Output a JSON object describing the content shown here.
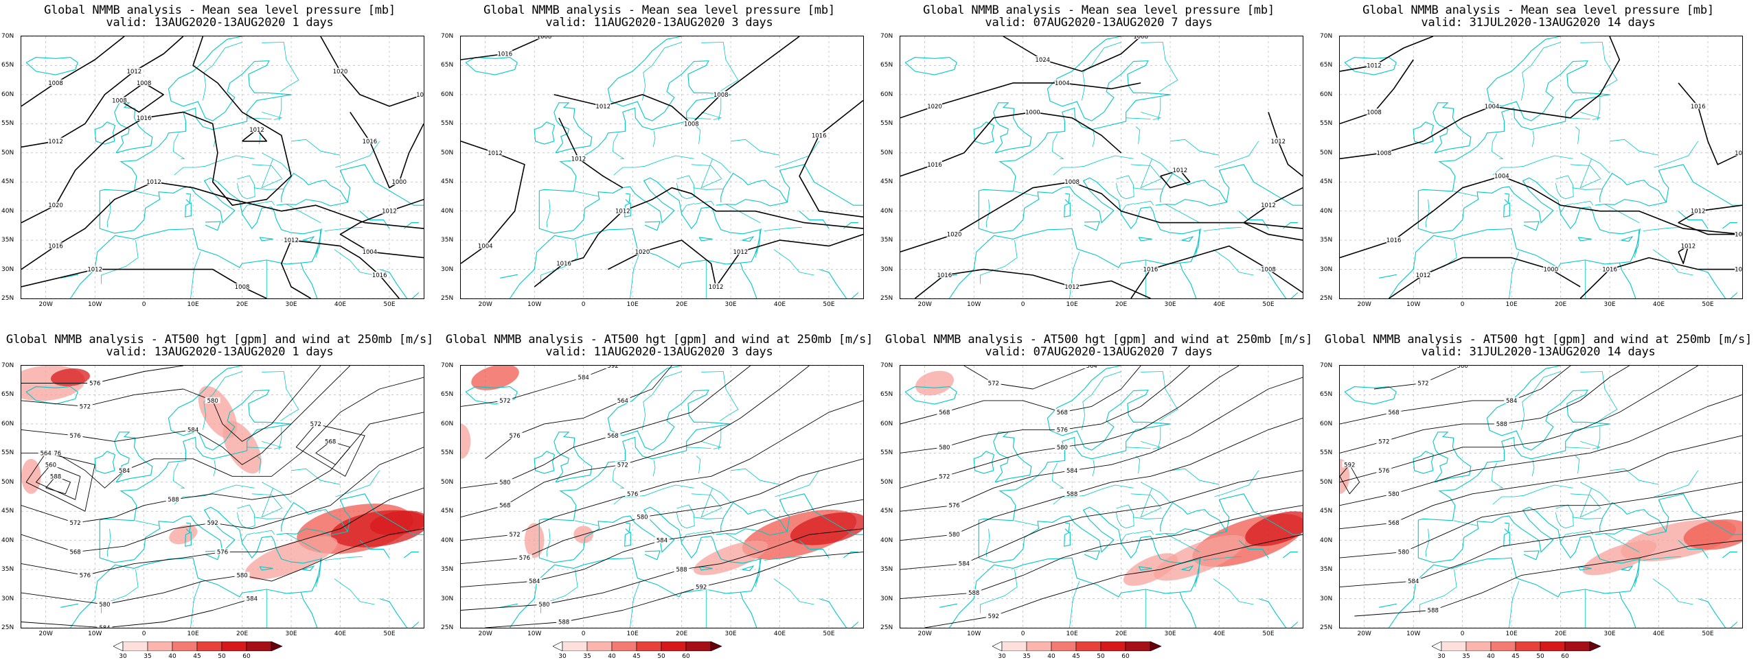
{
  "panels": [
    {
      "title1": "Global NMMB analysis - Mean sea level pressure [mb]",
      "title2": "valid: 13AUG2020-13AUG2020  1 days",
      "contour_labels": [
        "1012",
        "1016",
        "1020",
        "1016",
        "1012",
        "1016",
        "1012",
        "1016",
        "1020",
        "1012",
        "1008",
        "1012",
        "1008",
        "1016",
        "1012",
        "1008",
        "1012",
        "1004",
        "1000",
        "1012",
        "1012",
        "1008",
        "1012"
      ]
    },
    {
      "title1": "Global NMMB analysis - Mean sea level pressure [mb]",
      "title2": "valid: 11AUG2020-13AUG2020  3 days",
      "contour_labels": [
        "1016",
        "1012",
        "1016",
        "1020",
        "1012",
        "1016",
        "1016",
        "1012",
        "1012",
        "1008",
        "1004",
        "1012",
        "1012",
        "1008",
        "1008"
      ]
    },
    {
      "title1": "Global NMMB analysis - Mean sea level pressure [mb]",
      "title2": "valid: 07AUG2020-13AUG2020  7 days",
      "contour_labels": [
        "1024",
        "1020",
        "1016",
        "1020",
        "1016",
        "1016",
        "1012",
        "1012",
        "1012",
        "1008",
        "1004",
        "1000",
        "1008",
        "1012",
        "1008"
      ]
    },
    {
      "title1": "Global NMMB analysis - Mean sea level pressure [mb]",
      "title2": "valid: 31JUL2020-13AUG2020  14 days",
      "contour_labels": [
        "1016",
        "1004",
        "1008",
        "1016",
        "1012",
        "1016",
        "1012",
        "1016",
        "1012",
        "1012",
        "1008",
        "1004",
        "1004",
        "1000",
        "1012",
        "1008",
        "1012"
      ]
    },
    {
      "title1": "Global NMMB analysis - AT500 hgt [gpm] and wind at 250mb [m/s]",
      "title2": "valid: 13AUG2020-13AUG2020  1 days",
      "contour_labels": [
        "568",
        "572",
        "576",
        "576",
        "572",
        "568",
        "576",
        "580",
        "584",
        "588",
        "560",
        "564",
        "568",
        "572",
        "576",
        "580",
        "584",
        "584",
        "588",
        "592",
        "576",
        "580",
        "584"
      ]
    },
    {
      "title1": "Global NMMB analysis - AT500 hgt [gpm] and wind at 250mb [m/s]",
      "title2": "valid: 11AUG2020-13AUG2020  3 days",
      "contour_labels": [
        "572",
        "576",
        "580",
        "568",
        "572",
        "576",
        "584",
        "580",
        "588",
        "592",
        "564",
        "568",
        "572",
        "576",
        "580",
        "584",
        "588",
        "592",
        "584"
      ]
    },
    {
      "title1": "Global NMMB analysis - AT500 hgt [gpm] and wind at 250mb [m/s]",
      "title2": "valid: 07AUG2020-13AUG2020  7 days",
      "contour_labels": [
        "572",
        "568",
        "580",
        "572",
        "576",
        "580",
        "584",
        "588",
        "592",
        "564",
        "568",
        "576",
        "580",
        "584",
        "588"
      ]
    },
    {
      "title1": "Global NMMB analysis - AT500 hgt [gpm] and wind at 250mb [m/s]",
      "title2": "valid: 31JUL2020-13AUG2020  14 days",
      "contour_labels": [
        "572",
        "568",
        "572",
        "576",
        "580",
        "568",
        "580",
        "584",
        "588",
        "592",
        "580",
        "584",
        "588"
      ]
    }
  ],
  "axes": {
    "lat_labels": [
      "70N",
      "65N",
      "60N",
      "55N",
      "50N",
      "45N",
      "40N",
      "35N",
      "30N",
      "25N"
    ],
    "lon_labels": [
      "20W",
      "10W",
      "0",
      "10E",
      "20E",
      "30E",
      "40E",
      "50E"
    ]
  },
  "colorbar": {
    "labels": [
      "30",
      "35",
      "40",
      "45",
      "50",
      "60"
    ],
    "colors": [
      "#ffffff",
      "#fde0dc",
      "#fbb4ae",
      "#f37b72",
      "#e8403a",
      "#d7191c",
      "#a50f15",
      "#67000d"
    ]
  },
  "colors": {
    "coastline": "#00c8c8",
    "contour": "#000000",
    "grid": "#aaaaaa"
  }
}
